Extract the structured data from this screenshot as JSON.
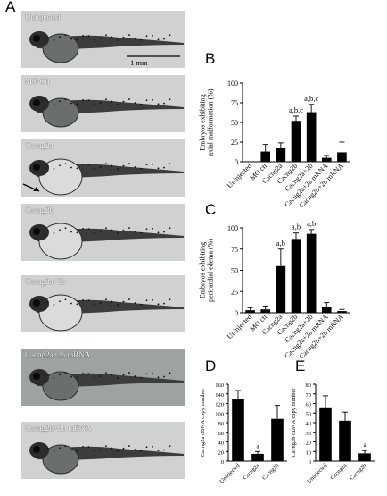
{
  "panel_labels": {
    "A": "A",
    "B": "B",
    "C": "C",
    "D": "D",
    "E": "E"
  },
  "micrographs": [
    {
      "label": "Uninjected",
      "variant": "normal"
    },
    {
      "label": "MO Ctl",
      "variant": "normal"
    },
    {
      "label": "Cacng2a",
      "variant": "edema"
    },
    {
      "label": "Cacng2b",
      "variant": "edema"
    },
    {
      "label": "Cacng2a+2b",
      "variant": "edema"
    },
    {
      "label": "Cacng2a+2a mRNA",
      "variant": "dark"
    },
    {
      "label": "Cacng2b+2b mRNA",
      "variant": "normal"
    }
  ],
  "scale_bar_label": "1 mm",
  "chart_data": [
    {
      "type": "bar",
      "panel": "B",
      "ylabel": "Embryos exhibiting axial malformation (%)",
      "categories": [
        "Uninjected",
        "MO ctl",
        "Cacng2a",
        "Cacng2b",
        "Cacng2a+2b",
        "Cacng2a+2a mRNA",
        "Cacng2b+2b mRNA"
      ],
      "values": [
        0,
        13,
        17,
        52,
        63,
        5,
        12
      ],
      "errors": [
        0,
        9,
        7,
        6,
        10,
        3,
        13
      ],
      "annotations": [
        "",
        "",
        "",
        "a,b,c",
        "a,b,c",
        "",
        ""
      ],
      "ylim": [
        0,
        100
      ],
      "color": "#000000"
    },
    {
      "type": "bar",
      "panel": "C",
      "ylabel": "Embryos exhibiting pericardial edema (%)",
      "categories": [
        "Uninjected",
        "MO ctl",
        "Cacng2a",
        "Cacng2b",
        "Cacng2a+2b",
        "Cacng2a+2a mRNA",
        "Cacng2b+2b mRNA"
      ],
      "values": [
        3,
        4,
        55,
        87,
        93,
        7,
        2
      ],
      "errors": [
        3,
        4,
        20,
        7,
        5,
        5,
        2
      ],
      "annotations": [
        "",
        "",
        "a,b",
        "a,b",
        "a,b",
        "",
        ""
      ],
      "ylim": [
        0,
        100
      ],
      "color": "#000000"
    },
    {
      "type": "bar",
      "panel": "D",
      "ylabel": "Cacng2a cDNA copy number",
      "categories": [
        "Uninjected",
        "Cacng2a",
        "Cacng2b"
      ],
      "values": [
        129,
        15,
        88
      ],
      "errors": [
        18,
        5,
        28
      ],
      "annotations": [
        "",
        "a",
        ""
      ],
      "ylim": [
        0,
        160
      ],
      "color": "#000000"
    },
    {
      "type": "bar",
      "panel": "E",
      "ylabel": "Cacng2b cDNA copy number",
      "categories": [
        "Uninjected",
        "Cacng2a",
        "Cacng2b"
      ],
      "values": [
        56,
        42,
        8
      ],
      "errors": [
        12,
        9,
        3
      ],
      "annotations": [
        "",
        "",
        "a"
      ],
      "ylim": [
        0,
        80
      ],
      "color": "#000000"
    }
  ]
}
